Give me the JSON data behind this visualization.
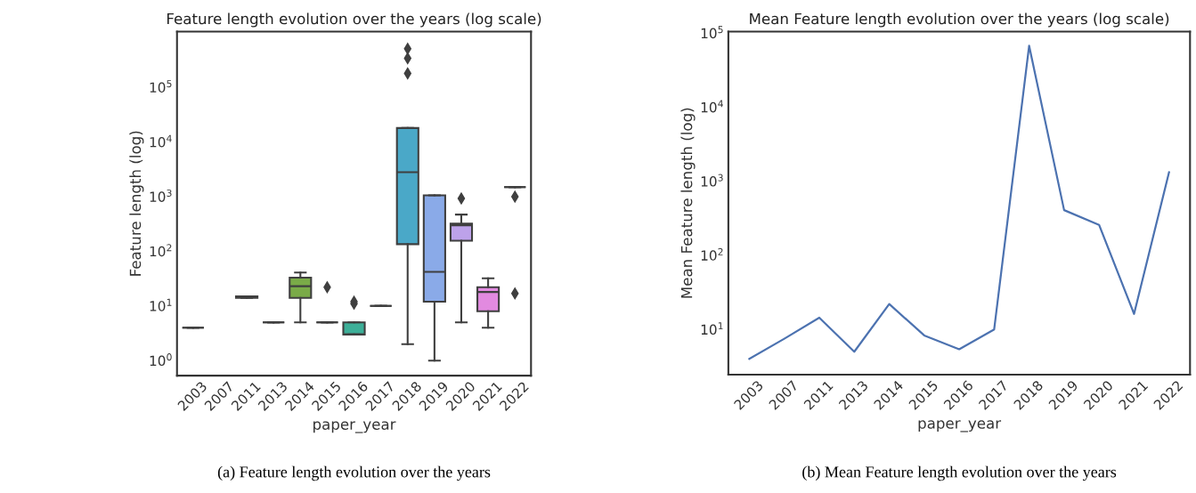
{
  "chart_data": [
    {
      "type": "box",
      "title": "Feature length evolution over the years (log scale)",
      "xlabel": "paper_year",
      "ylabel": "Feature length (log)",
      "log": "y",
      "grid": false,
      "marker": "diamond",
      "categories": [
        "2003",
        "2007",
        "2011",
        "2013",
        "2014",
        "2015",
        "2016",
        "2017",
        "2018",
        "2019",
        "2020",
        "2021",
        "2022"
      ],
      "colors": [
        null,
        null,
        null,
        null,
        "#7aab48",
        null,
        "#3daf98",
        null,
        "#4aa8c8",
        "#8aaae8",
        "#bda2ea",
        "#e28ae0",
        null
      ],
      "boxes": [
        {
          "low": 4,
          "q1": 4,
          "median": 4,
          "q3": 4,
          "high": 4
        },
        null,
        {
          "low": 14,
          "q1": 14,
          "median": 15,
          "q3": 15,
          "high": 15
        },
        {
          "low": 5,
          "q1": 5,
          "median": 5,
          "q3": 5,
          "high": 5
        },
        {
          "low": 5,
          "q1": 14,
          "median": 23,
          "q3": 33,
          "high": 41
        },
        {
          "low": 5,
          "q1": 5,
          "median": 5,
          "q3": 5,
          "high": 5,
          "outliers": [
            22
          ]
        },
        {
          "low": 3,
          "q1": 3,
          "median": 3,
          "q3": 5,
          "high": 5,
          "outliers": [
            11,
            12
          ]
        },
        {
          "low": 10,
          "q1": 10,
          "median": 10,
          "q3": 10,
          "high": 10
        },
        {
          "low": 2,
          "q1": 135,
          "median": 2800,
          "q3": 18000,
          "high": 18000,
          "outliers": [
            180000,
            340000,
            510000
          ]
        },
        {
          "low": 1,
          "q1": 12,
          "median": 42,
          "q3": 1060,
          "high": 1060
        },
        {
          "low": 5,
          "q1": 156,
          "median": 300,
          "q3": 320,
          "high": 470,
          "outliers": [
            930
          ]
        },
        {
          "low": 4,
          "q1": 8,
          "median": 18,
          "q3": 22,
          "high": 32
        },
        {
          "low": 1500,
          "q1": 1500,
          "median": 1500,
          "q3": 1500,
          "high": 1500,
          "outliers": [
            17,
            1000
          ]
        }
      ],
      "ylim": [
        0.53,
        1050000
      ],
      "yticks": [
        {
          "value": 1,
          "label": "10$^{0}$"
        },
        {
          "value": 10,
          "label": "10$^{1}$"
        },
        {
          "value": 100,
          "label": "10$^{2}$"
        },
        {
          "value": 1000,
          "label": "10$^{3}$"
        },
        {
          "value": 10000,
          "label": "10$^{4}$"
        },
        {
          "value": 100000,
          "label": "10$^{5}$"
        }
      ],
      "annotations": [
        "(a) Feature length evolution over the years"
      ]
    },
    {
      "type": "line",
      "title": "Mean Feature length evolution over the years (log scale)",
      "xlabel": "paper_year",
      "ylabel": "Mean Feature length (log)",
      "log": "y",
      "grid": false,
      "marker": "none",
      "line_style": "solid",
      "categories": [
        "2003",
        "2007",
        "2011",
        "2013",
        "2014",
        "2015",
        "2016",
        "2017",
        "2018",
        "2019",
        "2020",
        "2021",
        "2022"
      ],
      "series": [
        {
          "color": "#4c72b0",
          "values": [
            4.0,
            7.5,
            14.4,
            5.0,
            22,
            8.3,
            5.4,
            10,
            67500,
            408,
            258,
            16.2,
            1320
          ]
        }
      ],
      "ylim": [
        2.45,
        105000
      ],
      "yticks": [
        {
          "value": 10,
          "label": "10$^{1}$"
        },
        {
          "value": 100,
          "label": "10$^{2}$"
        },
        {
          "value": 1000,
          "label": "10$^{3}$"
        },
        {
          "value": 10000,
          "label": "10$^{4}$"
        },
        {
          "value": 100000,
          "label": "10$^{5}$"
        }
      ],
      "annotations": [
        "(b) Mean Feature length evolution over the years"
      ]
    }
  ]
}
